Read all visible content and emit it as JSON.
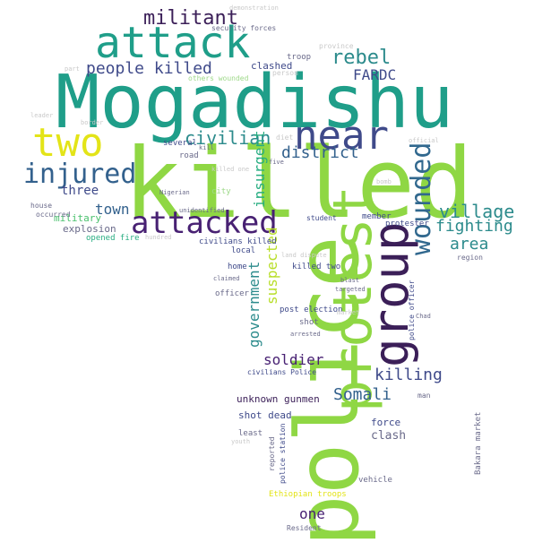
{
  "words": {
    "mogadishu": "Mogadishu",
    "killed": "killed",
    "police": "police",
    "protest": "protest",
    "attack": "attack",
    "group": "group",
    "two": "two",
    "near": "near",
    "attacked": "attacked",
    "injured": "injured",
    "wounded": "wounded",
    "militant": "militant",
    "people_killed": "people killed",
    "civilian": "civilian",
    "rebel": "rebel",
    "fardc": "FARDC",
    "district": "district",
    "village": "village",
    "fighting": "fighting",
    "area": "area",
    "three": "three",
    "town": "town",
    "insurgent": "insurgent",
    "suspected": "suspected",
    "government": "government",
    "soldier": "soldier",
    "killing": "killing",
    "somali": "Somali",
    "one": "one",
    "unknown_gunmen": "unknown gunmen",
    "shot_dead": "shot dead",
    "clash": "clash",
    "force": "force",
    "military": "military",
    "explosion": "explosion",
    "opened_fire": "opened fire",
    "civilians_killed": "civilians killed",
    "killed_two": "killed two",
    "clashed": "clashed",
    "troop": "troop",
    "security_forces": "security forces",
    "others_wounded": "others wounded",
    "several": "several",
    "road": "road",
    "city": "city",
    "member": "member",
    "protester": "protester",
    "student": "student",
    "region": "region",
    "local": "local",
    "home": "home",
    "officer": "officer",
    "least": "least",
    "shot": "shot",
    "post_election": "post election",
    "police_officer": "police officer",
    "police_station": "police station",
    "ethiopian_troops": "Ethiopian troops",
    "vehicle": "vehicle",
    "reported": "reported",
    "bakara_market": "Bakara market",
    "civilians_police": "civilians Police",
    "resident": "Resident",
    "man": "man",
    "house": "house",
    "occurred": "occurred",
    "province": "province",
    "demonstration": "demonstration",
    "land_dispute": "land dispute",
    "nigerian": "Nigerian",
    "hundred": "hundred",
    "youth": "youth",
    "arrested": "arrested",
    "diet": "diet",
    "five": "five",
    "bomb": "bomb",
    "blast": "blast",
    "targeted": "targeted",
    "official": "official",
    "border": "border",
    "leader": "leader",
    "kill": "kill",
    "killed_one": "killed one",
    "unidentified": "unidentified",
    "claimed": "claimed",
    "chad": "Chad",
    "part": "part",
    "market": "market",
    "person": "person"
  }
}
